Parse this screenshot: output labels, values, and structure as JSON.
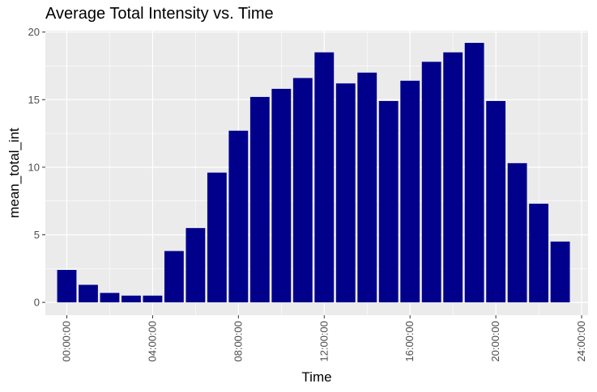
{
  "chart_data": {
    "type": "bar",
    "title": "Average Total Intensity vs. Time",
    "xlabel": "Time",
    "ylabel": "mean_total_int",
    "x_tick_labels": [
      "00:00:00",
      "04:00:00",
      "08:00:00",
      "12:00:00",
      "16:00:00",
      "20:00:00",
      "24:00:00"
    ],
    "y_tick_labels": [
      "0",
      "5",
      "10",
      "15",
      "20"
    ],
    "y_ticks": [
      0,
      5,
      10,
      15,
      20
    ],
    "ylim": [
      -0.95,
      20.1
    ],
    "xlim_hours": [
      -1.0,
      24.3
    ],
    "x_hours": [
      0,
      1,
      2,
      3,
      4,
      5,
      6,
      7,
      8,
      9,
      10,
      11,
      12,
      13,
      14,
      15,
      16,
      17,
      18,
      19,
      20,
      21,
      22,
      23
    ],
    "values": [
      2.4,
      1.3,
      0.7,
      0.5,
      0.5,
      3.8,
      5.5,
      9.6,
      12.7,
      15.2,
      15.8,
      16.6,
      18.5,
      16.2,
      17.0,
      14.9,
      16.4,
      17.8,
      18.5,
      19.2,
      14.9,
      10.3,
      7.3,
      4.5
    ],
    "bar_color": "#00008B",
    "panel_background": "#EBEBEB",
    "grid": true
  }
}
